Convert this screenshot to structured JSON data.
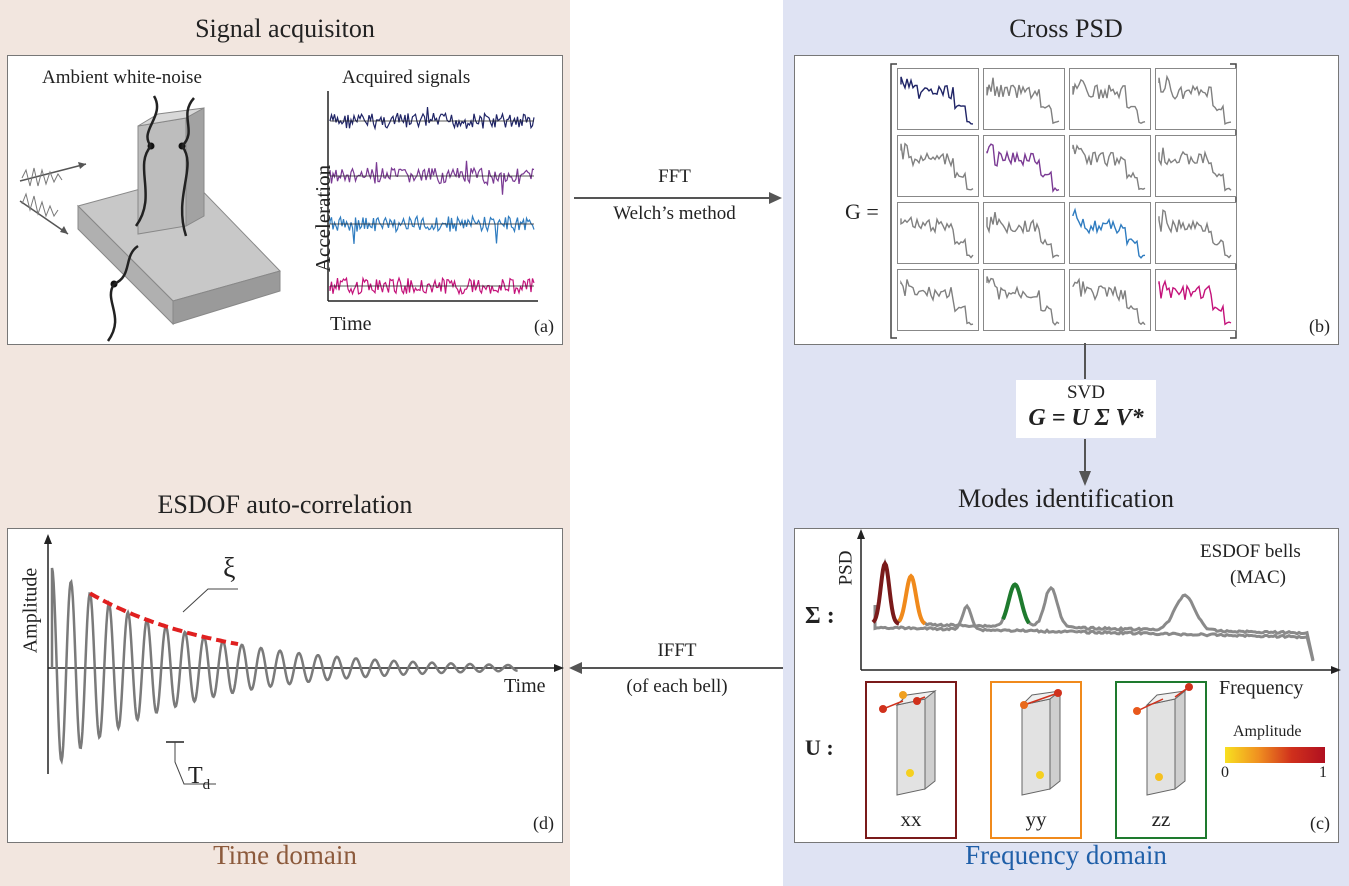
{
  "panels": {
    "a": {
      "title": "Signal acquisiton",
      "ambient_label": "Ambient white-noise",
      "signals_label": "Acquired signals",
      "y_axis": "Acceleration",
      "x_axis": "Time",
      "tag": "(a)",
      "signal_colors": [
        "#1f2466",
        "#7a3a93",
        "#2f7cc0",
        "#c4127a"
      ]
    },
    "b": {
      "title": "Cross PSD",
      "matrix_label": "G =",
      "tag": "(b)",
      "diag_colors": [
        "#1f2466",
        "#7a3a93",
        "#2f7cc0",
        "#c4127a"
      ],
      "offdiag_color": "#808080"
    },
    "c": {
      "title": "Modes identification",
      "sigma_label": "Σ :",
      "u_label": "U :",
      "y_axis": "PSD",
      "x_axis": "Frequency",
      "bells_label_1": "ESDOF bells",
      "bells_label_2": "(MAC)",
      "modes": [
        {
          "label": "xx",
          "color": "#7a1a1a"
        },
        {
          "label": "yy",
          "color": "#f08a1c"
        },
        {
          "label": "zz",
          "color": "#1e7a2e"
        }
      ],
      "colorbar_title": "Amplitude",
      "colorbar_min": "0",
      "colorbar_max": "1",
      "tag": "(c)"
    },
    "d": {
      "title": "ESDOF auto-correlation",
      "y_axis": "Amplitude",
      "x_axis": "Time",
      "damping_symbol": "ξ",
      "period_symbol": "T",
      "period_sub": "d",
      "tag": "(d)"
    }
  },
  "arrows": {
    "fft_1": "FFT",
    "fft_2": "Welch’s method",
    "svd_1": "SVD",
    "svd_eq": "G = U Σ V*",
    "ifft_1": "IFFT",
    "ifft_2": "(of each bell)"
  },
  "domains": {
    "time": "Time domain",
    "frequency": "Frequency domain",
    "time_color": "#8c5a3c",
    "frequency_color": "#1f5fa8"
  }
}
